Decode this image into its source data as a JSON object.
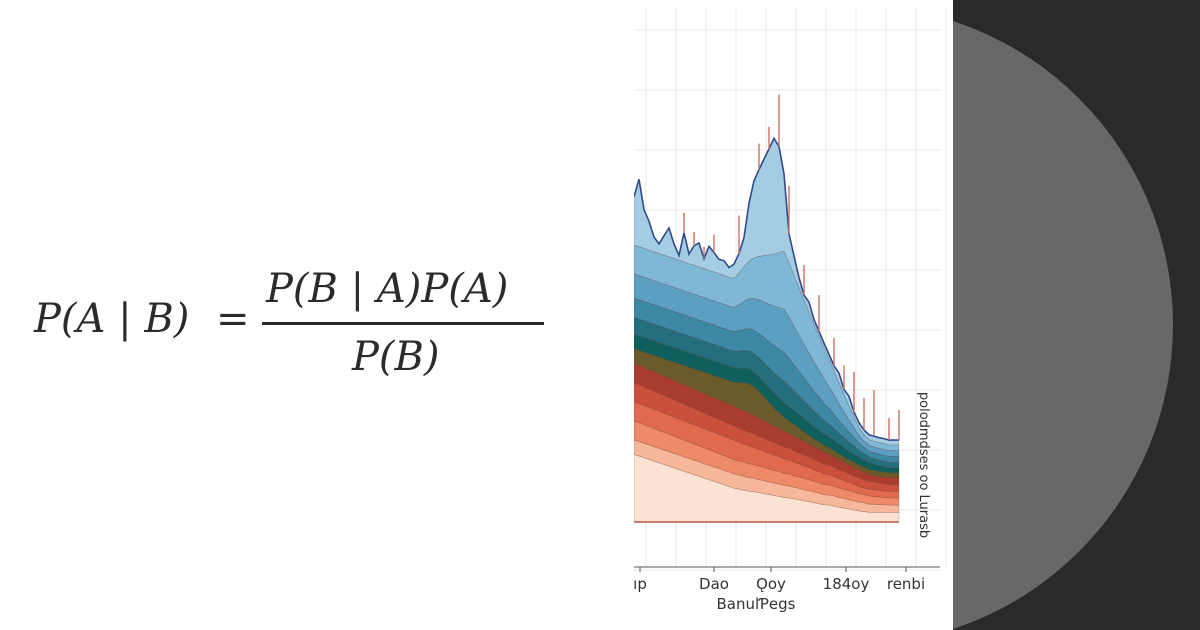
{
  "formula": {
    "lhs": "P(A | B)",
    "equals": "=",
    "numerator": "P(B | A)P(A)",
    "denominator": "P(B)"
  },
  "chart_data": {
    "type": "area",
    "title": "",
    "xlabel": "BanulƤegs",
    "ylabel": "",
    "side_label": "polodmdses oo Lurasb",
    "x_tick_labels": [
      "ıp",
      "Dao",
      "Ǫoy",
      "184oy",
      "renbi"
    ],
    "grid": true,
    "stacked": true,
    "x": [
      0,
      1,
      2,
      3,
      4,
      5,
      6,
      7,
      8,
      9,
      10,
      11,
      12,
      13,
      14,
      15,
      16,
      17,
      18,
      19,
      20,
      21,
      22,
      23,
      24,
      25,
      26,
      27,
      28,
      29,
      30,
      31,
      32,
      33,
      34,
      35,
      36,
      37,
      38,
      39,
      40,
      41,
      42,
      43,
      44,
      45,
      46,
      47,
      48,
      49,
      50,
      51,
      52,
      53
    ],
    "ylim": [
      0,
      100
    ],
    "colors": {
      "reds": [
        "#fbe2d2",
        "#f6b79a",
        "#ee8a68",
        "#e06a4e",
        "#c9503b",
        "#a93e30"
      ],
      "olive": "#6b5a2a",
      "blues": [
        "#0f5f5c",
        "#246f7e",
        "#3d88a5",
        "#5c9fc2",
        "#7fb7d6",
        "#a4cde4"
      ],
      "peak_line": "#2f4a8c",
      "spikes": "#c97060"
    },
    "series": [
      {
        "values": [
          14.0,
          13.7,
          13.3,
          13.0,
          12.6,
          12.3,
          11.9,
          11.6,
          11.2,
          10.9,
          10.5,
          10.2,
          9.8,
          9.5,
          9.1,
          8.8,
          8.4,
          8.1,
          7.7,
          7.4,
          7.0,
          6.8,
          6.6,
          6.4,
          6.3,
          6.1,
          5.9,
          5.7,
          5.5,
          5.3,
          5.1,
          5.0,
          4.8,
          4.6,
          4.4,
          4.2,
          4.0,
          3.8,
          3.6,
          3.5,
          3.3,
          3.1,
          2.9,
          2.7,
          2.5,
          2.3,
          2.2,
          2.0,
          2.0,
          2.0,
          2.0,
          2.0,
          2.0,
          2.0
        ]
      },
      {
        "values": [
          3.0,
          3.0,
          3.0,
          3.0,
          3.0,
          3.0,
          3.0,
          3.0,
          3.0,
          3.0,
          3.0,
          3.0,
          3.0,
          3.0,
          3.0,
          3.0,
          3.0,
          3.0,
          3.0,
          3.0,
          3.0,
          2.9,
          2.9,
          2.8,
          2.8,
          2.7,
          2.7,
          2.6,
          2.6,
          2.6,
          2.5,
          2.5,
          2.4,
          2.4,
          2.3,
          2.3,
          2.2,
          2.2,
          2.1,
          2.1,
          2.1,
          2.0,
          2.0,
          1.9,
          1.9,
          1.8,
          1.8,
          1.7,
          1.7,
          1.6,
          1.6,
          1.5,
          1.5,
          1.5
        ]
      },
      {
        "values": [
          4.0,
          3.9,
          3.9,
          3.8,
          3.8,
          3.7,
          3.7,
          3.6,
          3.6,
          3.5,
          3.5,
          3.4,
          3.4,
          3.3,
          3.3,
          3.2,
          3.2,
          3.1,
          3.1,
          3.0,
          3.0,
          3.0,
          2.9,
          2.9,
          2.8,
          2.8,
          2.7,
          2.7,
          2.6,
          2.6,
          2.5,
          2.5,
          2.4,
          2.4,
          2.3,
          2.3,
          2.2,
          2.2,
          2.1,
          2.1,
          2.0,
          2.0,
          1.9,
          1.9,
          1.8,
          1.8,
          1.7,
          1.7,
          1.6,
          1.6,
          1.5,
          1.5,
          1.5,
          1.5
        ]
      },
      {
        "values": [
          4.0,
          4.0,
          4.0,
          4.0,
          4.0,
          4.0,
          4.0,
          4.0,
          4.0,
          4.0,
          4.0,
          4.0,
          4.0,
          4.0,
          4.0,
          4.0,
          4.0,
          4.0,
          4.0,
          4.0,
          4.0,
          3.9,
          3.8,
          3.7,
          3.6,
          3.5,
          3.4,
          3.3,
          3.2,
          3.1,
          3.0,
          2.9,
          2.8,
          2.7,
          2.6,
          2.5,
          2.4,
          2.3,
          2.2,
          2.1,
          2.0,
          1.9,
          1.8,
          1.7,
          1.6,
          1.5,
          1.4,
          1.4,
          1.4,
          1.4,
          1.4,
          1.4,
          1.4,
          1.4
        ]
      },
      {
        "values": [
          4.0,
          3.9,
          3.9,
          3.8,
          3.8,
          3.7,
          3.7,
          3.6,
          3.6,
          3.5,
          3.5,
          3.4,
          3.4,
          3.3,
          3.3,
          3.2,
          3.2,
          3.1,
          3.1,
          3.0,
          3.0,
          2.9,
          2.9,
          2.8,
          2.8,
          2.7,
          2.7,
          2.6,
          2.6,
          2.5,
          2.5,
          2.4,
          2.4,
          2.3,
          2.3,
          2.2,
          2.2,
          2.1,
          2.1,
          2.0,
          2.0,
          1.9,
          1.9,
          1.8,
          1.8,
          1.7,
          1.7,
          1.6,
          1.6,
          1.5,
          1.5,
          1.4,
          1.4,
          1.4
        ]
      },
      {
        "values": [
          4.0,
          4.0,
          4.0,
          4.0,
          4.0,
          4.0,
          4.0,
          4.0,
          4.0,
          4.0,
          4.0,
          4.0,
          4.0,
          4.0,
          4.0,
          4.0,
          4.0,
          4.0,
          4.0,
          4.0,
          4.0,
          4.0,
          4.0,
          3.9,
          3.8,
          3.7,
          3.6,
          3.5,
          3.4,
          3.3,
          3.2,
          3.1,
          3.0,
          2.9,
          2.8,
          2.7,
          2.6,
          2.5,
          2.4,
          2.3,
          2.2,
          2.1,
          2.0,
          1.9,
          1.8,
          1.7,
          1.6,
          1.5,
          1.4,
          1.4,
          1.4,
          1.4,
          1.4,
          1.4
        ]
      },
      {
        "values": [
          3.0,
          3.1,
          3.2,
          3.3,
          3.4,
          3.5,
          3.6,
          3.7,
          3.8,
          3.9,
          4.0,
          4.1,
          4.2,
          4.3,
          4.4,
          4.5,
          4.6,
          4.7,
          4.8,
          4.9,
          5.0,
          5.4,
          5.8,
          6.2,
          6.0,
          5.6,
          5.0,
          4.4,
          3.8,
          3.3,
          2.9,
          2.6,
          2.4,
          2.2,
          2.0,
          1.8,
          1.6,
          1.5,
          1.4,
          1.3,
          1.2,
          1.1,
          1.0,
          1.0,
          1.0,
          1.0,
          1.0,
          1.0,
          1.0,
          1.0,
          1.0,
          1.0,
          1.0,
          1.0
        ]
      },
      {
        "values": [
          3.0,
          3.0,
          3.0,
          3.0,
          3.0,
          3.0,
          3.0,
          3.0,
          3.0,
          3.0,
          3.0,
          3.0,
          3.0,
          3.0,
          3.0,
          3.0,
          3.0,
          3.0,
          3.0,
          3.0,
          3.0,
          3.0,
          3.0,
          3.0,
          3.0,
          3.0,
          3.0,
          3.0,
          3.0,
          3.0,
          3.0,
          3.0,
          2.9,
          2.8,
          2.7,
          2.6,
          2.5,
          2.4,
          2.3,
          2.2,
          2.1,
          2.0,
          1.9,
          1.8,
          1.7,
          1.6,
          1.5,
          1.4,
          1.3,
          1.2,
          1.1,
          1.0,
          1.0,
          1.0
        ]
      },
      {
        "values": [
          3.5,
          3.5,
          3.5,
          3.5,
          3.5,
          3.5,
          3.5,
          3.5,
          3.5,
          3.5,
          3.5,
          3.5,
          3.5,
          3.5,
          3.5,
          3.5,
          3.5,
          3.5,
          3.5,
          3.5,
          3.5,
          3.6,
          3.7,
          3.8,
          3.9,
          4.0,
          4.1,
          4.2,
          4.3,
          4.4,
          4.5,
          4.3,
          4.1,
          3.9,
          3.7,
          3.5,
          3.3,
          3.1,
          2.9,
          2.7,
          2.5,
          2.3,
          2.1,
          1.9,
          1.7,
          1.5,
          1.3,
          1.2,
          1.2,
          1.2,
          1.2,
          1.2,
          1.2,
          1.2
        ]
      },
      {
        "values": [
          4.0,
          4.0,
          4.0,
          4.0,
          4.0,
          4.0,
          4.0,
          4.0,
          4.0,
          4.0,
          4.0,
          4.0,
          4.0,
          4.0,
          4.0,
          4.0,
          4.0,
          4.0,
          4.0,
          4.0,
          4.0,
          4.2,
          4.4,
          4.6,
          4.8,
          5.0,
          5.2,
          5.4,
          5.6,
          5.8,
          6.0,
          5.7,
          5.4,
          5.1,
          4.8,
          4.5,
          4.2,
          3.9,
          3.6,
          3.3,
          3.0,
          2.7,
          2.4,
          2.1,
          1.8,
          1.5,
          1.3,
          1.2,
          1.2,
          1.2,
          1.2,
          1.2,
          1.2,
          1.2
        ]
      },
      {
        "values": [
          5.0,
          5.0,
          5.0,
          5.0,
          5.0,
          5.0,
          5.0,
          5.0,
          5.0,
          5.0,
          5.0,
          5.0,
          5.0,
          5.0,
          5.0,
          5.0,
          5.0,
          5.0,
          5.0,
          5.0,
          5.0,
          5.4,
          5.8,
          6.2,
          6.6,
          7.0,
          7.4,
          7.8,
          8.2,
          8.6,
          9.0,
          8.5,
          8.0,
          7.5,
          7.0,
          6.5,
          6.0,
          5.5,
          5.0,
          4.5,
          4.0,
          3.5,
          3.0,
          2.5,
          2.0,
          1.6,
          1.3,
          1.2,
          1.2,
          1.2,
          1.2,
          1.2,
          1.2,
          1.2
        ]
      },
      {
        "values": [
          6.0,
          6.0,
          6.0,
          6.0,
          6.0,
          6.0,
          6.0,
          6.0,
          6.0,
          6.0,
          6.0,
          6.0,
          6.0,
          6.0,
          6.0,
          6.0,
          6.0,
          6.0,
          6.0,
          6.0,
          6.0,
          6.6,
          7.2,
          7.8,
          8.4,
          9.0,
          9.6,
          10.2,
          10.8,
          11.4,
          12.0,
          11.3,
          10.6,
          9.9,
          9.2,
          8.5,
          7.8,
          7.1,
          6.4,
          5.7,
          5.0,
          4.3,
          3.6,
          2.9,
          2.2,
          1.6,
          1.3,
          1.2,
          1.2,
          1.2,
          1.2,
          1.2,
          1.2,
          1.2
        ]
      },
      {
        "values": [
          10.0,
          14.0,
          8.0,
          6.0,
          3.0,
          2.0,
          4.0,
          6.0,
          3.0,
          1.0,
          6.0,
          2.0,
          4.0,
          5.0,
          2.0,
          5.0,
          4.0,
          3.0,
          3.0,
          2.0,
          3.0,
          4.0,
          6.0,
          12.0,
          16.0,
          18.0,
          20.0,
          22.0,
          24.0,
          22.0,
          16.0,
          6.0,
          4.0,
          2.0,
          1.0,
          2.0,
          1.0,
          1.0,
          1.0,
          1.0,
          1.0,
          2.0,
          1.0,
          2.0,
          1.0,
          1.0,
          1.0,
          1.0,
          1.0,
          1.0,
          1.0,
          1.0,
          1.0,
          1.0
        ]
      }
    ]
  },
  "decoration": {
    "dark_panel_color": "#2a2a2a",
    "circle_color": "#686868"
  }
}
